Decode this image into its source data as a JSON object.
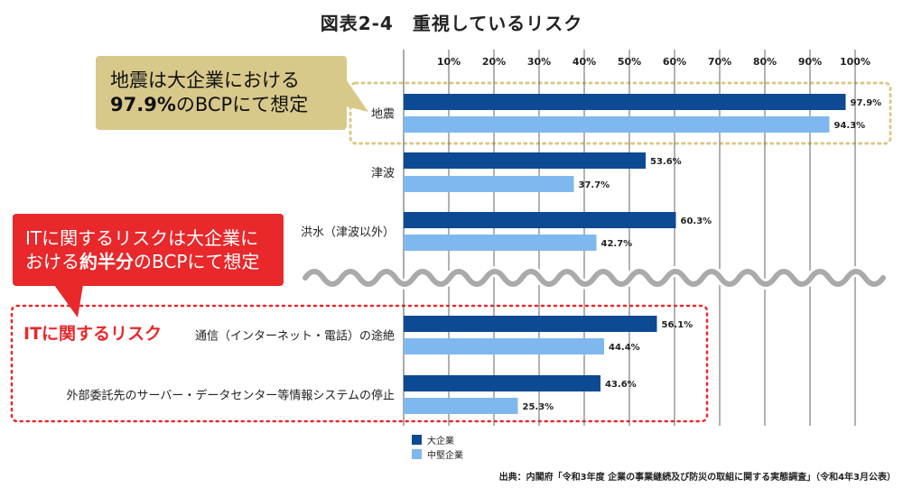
{
  "title": "図表2-4　重視しているリスク",
  "callouts": {
    "earthquake": {
      "line1": "地震は大企業における",
      "line2_bold": "97.9%",
      "line2_rest": "のBCPにて想定"
    },
    "it": {
      "line1": "ITに関するリスクは大企業に",
      "line2_pre": "おける",
      "line2_bold": "約半分",
      "line2_rest": "のBCPにて想定"
    },
    "it_group_label": "ITに関するリスク"
  },
  "source": "出典：内閣府「令和3年度 企業の事業継続及び防災の取組に関する実態調査」（令和4年3月公表）",
  "colors": {
    "large": "#0d4a94",
    "medium": "#7fb8ee",
    "highlight_yellow": "#d8c98a",
    "highlight_red": "#e8282b",
    "wave": "#aaaaaa"
  },
  "chart_data": {
    "type": "bar",
    "orientation": "horizontal",
    "categories": [
      "地震",
      "津波",
      "洪水（津波以外）",
      "通信（インターネット・電話）の途絶",
      "外部委託先のサーバー・データセンター等情報システムの停止"
    ],
    "series": [
      {
        "name": "大企業",
        "values": [
          97.9,
          53.6,
          60.3,
          56.1,
          43.6
        ]
      },
      {
        "name": "中堅企業",
        "values": [
          94.3,
          37.7,
          42.7,
          44.4,
          25.3
        ]
      }
    ],
    "value_labels": [
      [
        "97.9%",
        "53.6%",
        "60.3%",
        "56.1%",
        "43.6%"
      ],
      [
        "94.3%",
        "37.7%",
        "42.7%",
        "44.4%",
        "25.3%"
      ]
    ],
    "ticks": [
      "10%",
      "20%",
      "30%",
      "40%",
      "50%",
      "60%",
      "70%",
      "80%",
      "90%",
      "100%"
    ],
    "xlim": [
      0,
      100
    ],
    "grid": true,
    "legend_position": "bottom-left",
    "axis_break_after_index": 2
  }
}
